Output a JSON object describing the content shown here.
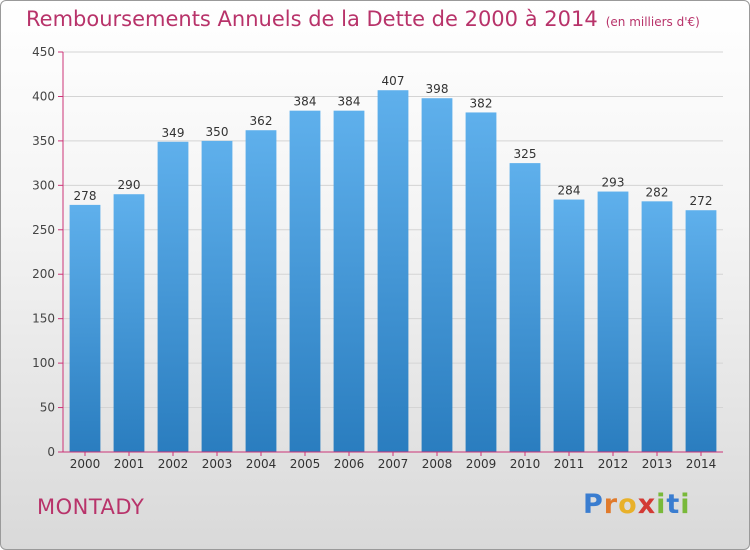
{
  "header": {
    "title": "Remboursements Annuels de la Dette de 2000 à 2014",
    "subtitle": "(en milliers d'€)"
  },
  "footer": {
    "city": "MONTADY",
    "logo_letters": [
      "P",
      "r",
      "o",
      "x",
      "i",
      "t",
      "i"
    ]
  },
  "colors": {
    "title": "#b8336a",
    "bar_top": "#5fb0ec",
    "bar_bottom": "#2a7dbf",
    "axis": "#cc3377",
    "grid": "#d4d4d4"
  },
  "chart_data": {
    "type": "bar",
    "title": "Remboursements Annuels de la Dette de 2000 à 2014",
    "xlabel": "",
    "ylabel": "",
    "categories": [
      "2000",
      "2001",
      "2002",
      "2003",
      "2004",
      "2005",
      "2006",
      "2007",
      "2008",
      "2009",
      "2010",
      "2011",
      "2012",
      "2013",
      "2014"
    ],
    "values": [
      278,
      290,
      349,
      350,
      362,
      384,
      384,
      407,
      398,
      382,
      325,
      284,
      293,
      282,
      272
    ],
    "ylim": [
      0,
      450
    ],
    "yticks": [
      0,
      50,
      100,
      150,
      200,
      250,
      300,
      350,
      400,
      450
    ],
    "grid": true,
    "data_labels": true
  }
}
